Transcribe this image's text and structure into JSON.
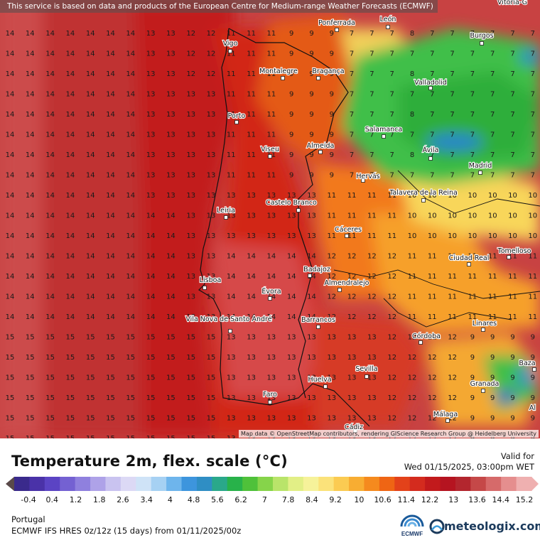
{
  "map": {
    "attribution_top": "This service is based on data and products of the European Centre for Medium-range Weather Forecasts (ECMWF)",
    "attribution_bottom": "Map data © OpenStreetMap contributors, rendering GIScience Research Group @ Heidelberg University",
    "cities": [
      {
        "name": "Vitoria-G"
      },
      {
        "name": "Ponferrada"
      },
      {
        "name": "León"
      },
      {
        "name": "Burgos"
      },
      {
        "name": "Vigo"
      },
      {
        "name": "Montalegre"
      },
      {
        "name": "Bragança"
      },
      {
        "name": "Valladolid"
      },
      {
        "name": "Porto"
      },
      {
        "name": "Salamanca"
      },
      {
        "name": "Viseu"
      },
      {
        "name": "Almeida"
      },
      {
        "name": "Ávila"
      },
      {
        "name": "Madrid"
      },
      {
        "name": "Hervás"
      },
      {
        "name": "Talavera de la Reina"
      },
      {
        "name": "Castelo Branco"
      },
      {
        "name": "Leiria"
      },
      {
        "name": "Cáceres"
      },
      {
        "name": "Ciudad Real"
      },
      {
        "name": "Tomelloso"
      },
      {
        "name": "Lisboa"
      },
      {
        "name": "Badajoz"
      },
      {
        "name": "Almendralejo"
      },
      {
        "name": "Évora"
      },
      {
        "name": "Vila Nova de Santo André"
      },
      {
        "name": "Barrancos"
      },
      {
        "name": "Córdoba"
      },
      {
        "name": "Linares"
      },
      {
        "name": "Sevilla"
      },
      {
        "name": "Huelva"
      },
      {
        "name": "Faro"
      },
      {
        "name": "Granada"
      },
      {
        "name": "Baza"
      },
      {
        "name": "Málaga"
      },
      {
        "name": "Cádiz"
      },
      {
        "name": "Al"
      }
    ]
  },
  "legend": {
    "title": "Temperature 2m, flex. scale (°C)",
    "valid_label": "Valid for",
    "valid_time": "Wed 01/15/2025, 03:00pm WET",
    "unit": "°C",
    "ticks": [
      "-0.4",
      "0.4",
      "1.2",
      "1.8",
      "2.6",
      "3.4",
      "4",
      "4.8",
      "5.6",
      "6.2",
      "7",
      "7.8",
      "8.4",
      "9.2",
      "10",
      "10.6",
      "11.4",
      "12.2",
      "13",
      "13.6",
      "14.4",
      "15.2"
    ],
    "colors": [
      "#3a2a8c",
      "#4a32a8",
      "#5b44c4",
      "#7461d2",
      "#8f80de",
      "#aea2e8",
      "#c9c3f0",
      "#dcd9f5",
      "#cfe3f7",
      "#a6d1f3",
      "#6eb5ec",
      "#3d95dd",
      "#2f8ec4",
      "#2aa88a",
      "#28b24a",
      "#4fc13a",
      "#86d44a",
      "#b9e46a",
      "#e2ef86",
      "#f6f29a",
      "#fbe27a",
      "#fbcb52",
      "#f8ad32",
      "#f58a1e",
      "#ef6514",
      "#e3421a",
      "#d42b1e",
      "#c21a1c",
      "#b51420",
      "#b3262e",
      "#c54848",
      "#d66a6a",
      "#e58e8e",
      "#efb0b0"
    ]
  },
  "footer": {
    "region": "Portugal",
    "model_run": "ECMWF IFS HRES 0z/12z (15 days) from 01/11/2025/00z",
    "ecmwf_label": "ECMWF",
    "brand": "meteologix.com"
  }
}
